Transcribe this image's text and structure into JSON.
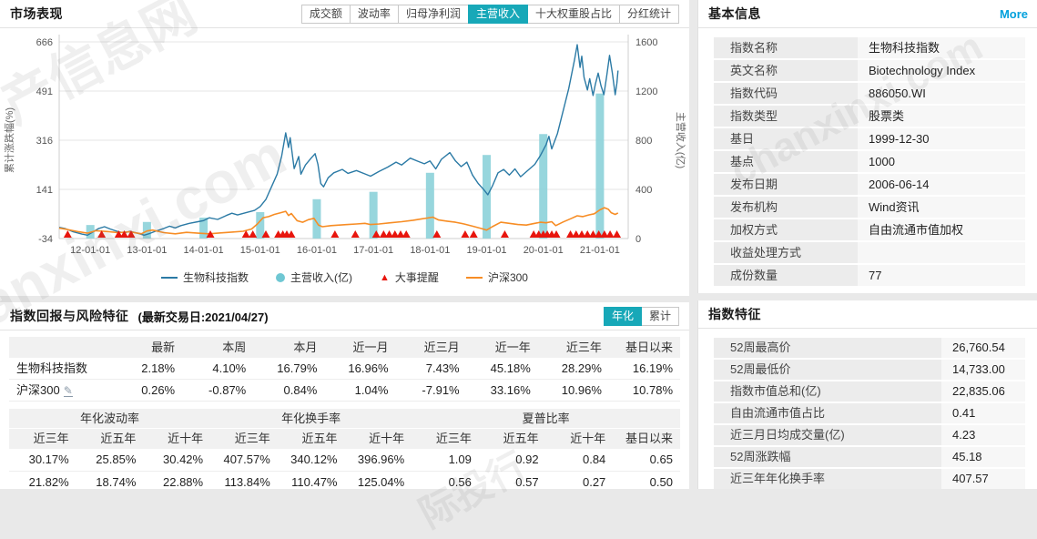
{
  "colors": {
    "accent_teal": "#17a8b8",
    "link_blue": "#00a0dc",
    "line_index": "#2b7aa5",
    "line_benchmark": "#f78d25",
    "bar_revenue": "#8ed2da",
    "event_red": "#e8150d",
    "positive_red": "#e0302e",
    "negative_green": "#0e9648"
  },
  "watermarks": [
    "产信息网",
    "anxinxi.com",
    "chanxinxi.com",
    "际投行"
  ],
  "market_panel": {
    "title": "市场表现",
    "tabs": [
      {
        "label": "成交额",
        "active": false
      },
      {
        "label": "波动率",
        "active": false
      },
      {
        "label": "归母净利润",
        "active": false
      },
      {
        "label": "主营收入",
        "active": true
      },
      {
        "label": "十大权重股占比",
        "active": false
      },
      {
        "label": "分红统计",
        "active": false
      }
    ],
    "legend": [
      {
        "label": "生物科技指数",
        "marker": "line",
        "color": "#2b7aa5"
      },
      {
        "label": "主营收入(亿)",
        "marker": "circle",
        "color": "#6fc7d3"
      },
      {
        "label": "大事提醒",
        "marker": "triangle",
        "color": "#e8150d"
      },
      {
        "label": "沪深300",
        "marker": "line",
        "color": "#f78d25"
      }
    ]
  },
  "chart_data": {
    "type": "line+bar",
    "y_left": {
      "label": "累计涨跌幅(%)",
      "ticks": [
        666,
        491,
        316,
        141,
        -34
      ],
      "min": -34,
      "max": 666
    },
    "y_right": {
      "label": "主营收入(亿)",
      "ticks": [
        1600,
        1200,
        800,
        400,
        0
      ],
      "min": 0,
      "max": 1600
    },
    "x": {
      "ticks": [
        "12-01-01",
        "13-01-01",
        "14-01-01",
        "15-01-01",
        "16-01-01",
        "17-01-01",
        "18-01-01",
        "19-01-01",
        "20-01-01",
        "21-01-01"
      ],
      "tick_years": [
        2012,
        2013,
        2014,
        2015,
        2016,
        2017,
        2018,
        2019,
        2020,
        2021
      ],
      "min": 2011.45,
      "max": 2021.5
    },
    "series": [
      {
        "name": "主营收入(亿)",
        "type": "bar",
        "axis": "right",
        "points": [
          [
            2012,
            110
          ],
          [
            2013,
            135
          ],
          [
            2014,
            170
          ],
          [
            2015,
            215
          ],
          [
            2016,
            320
          ],
          [
            2017,
            380
          ],
          [
            2018,
            535
          ],
          [
            2019,
            680
          ],
          [
            2020,
            850
          ],
          [
            2021,
            1180
          ]
        ]
      },
      {
        "name": "生物科技指数",
        "type": "line",
        "axis": "left",
        "points": [
          [
            2011.45,
            6
          ],
          [
            2011.55,
            2
          ],
          [
            2011.7,
            -10
          ],
          [
            2011.85,
            -18
          ],
          [
            2011.95,
            -22
          ],
          [
            2012.05,
            -10
          ],
          [
            2012.15,
            2
          ],
          [
            2012.25,
            8
          ],
          [
            2012.35,
            0
          ],
          [
            2012.5,
            -10
          ],
          [
            2012.6,
            -14
          ],
          [
            2012.7,
            -8
          ],
          [
            2012.85,
            -16
          ],
          [
            2012.95,
            -22
          ],
          [
            2013.05,
            -16
          ],
          [
            2013.15,
            -8
          ],
          [
            2013.3,
            2
          ],
          [
            2013.4,
            10
          ],
          [
            2013.5,
            4
          ],
          [
            2013.6,
            12
          ],
          [
            2013.75,
            20
          ],
          [
            2013.9,
            26
          ],
          [
            2014,
            30
          ],
          [
            2014.1,
            40
          ],
          [
            2014.25,
            34
          ],
          [
            2014.4,
            48
          ],
          [
            2014.5,
            56
          ],
          [
            2014.6,
            50
          ],
          [
            2014.75,
            58
          ],
          [
            2014.9,
            66
          ],
          [
            2015,
            80
          ],
          [
            2015.1,
            105
          ],
          [
            2015.2,
            150
          ],
          [
            2015.3,
            195
          ],
          [
            2015.38,
            260
          ],
          [
            2015.45,
            342
          ],
          [
            2015.5,
            290
          ],
          [
            2015.53,
            325
          ],
          [
            2015.6,
            215
          ],
          [
            2015.68,
            258
          ],
          [
            2015.72,
            195
          ],
          [
            2015.8,
            228
          ],
          [
            2015.9,
            252
          ],
          [
            2015.97,
            268
          ],
          [
            2016.02,
            230
          ],
          [
            2016.07,
            162
          ],
          [
            2016.12,
            150
          ],
          [
            2016.2,
            182
          ],
          [
            2016.3,
            200
          ],
          [
            2016.45,
            212
          ],
          [
            2016.55,
            198
          ],
          [
            2016.7,
            208
          ],
          [
            2016.85,
            196
          ],
          [
            2016.95,
            188
          ],
          [
            2017.1,
            205
          ],
          [
            2017.25,
            220
          ],
          [
            2017.4,
            238
          ],
          [
            2017.5,
            228
          ],
          [
            2017.65,
            252
          ],
          [
            2017.8,
            240
          ],
          [
            2017.9,
            232
          ],
          [
            2018,
            242
          ],
          [
            2018.1,
            214
          ],
          [
            2018.2,
            248
          ],
          [
            2018.35,
            272
          ],
          [
            2018.45,
            242
          ],
          [
            2018.55,
            222
          ],
          [
            2018.65,
            238
          ],
          [
            2018.75,
            192
          ],
          [
            2018.85,
            162
          ],
          [
            2018.95,
            140
          ],
          [
            2019.02,
            122
          ],
          [
            2019.1,
            152
          ],
          [
            2019.2,
            200
          ],
          [
            2019.3,
            212
          ],
          [
            2019.4,
            192
          ],
          [
            2019.5,
            214
          ],
          [
            2019.6,
            186
          ],
          [
            2019.7,
            204
          ],
          [
            2019.85,
            230
          ],
          [
            2019.95,
            262
          ],
          [
            2020.05,
            300
          ],
          [
            2020.1,
            330
          ],
          [
            2020.15,
            285
          ],
          [
            2020.25,
            340
          ],
          [
            2020.35,
            420
          ],
          [
            2020.45,
            500
          ],
          [
            2020.55,
            600
          ],
          [
            2020.6,
            656
          ],
          [
            2020.65,
            575
          ],
          [
            2020.68,
            615
          ],
          [
            2020.72,
            540
          ],
          [
            2020.78,
            495
          ],
          [
            2020.82,
            535
          ],
          [
            2020.88,
            475
          ],
          [
            2020.92,
            515
          ],
          [
            2020.97,
            555
          ],
          [
            2021.02,
            510
          ],
          [
            2021.07,
            478
          ],
          [
            2021.12,
            545
          ],
          [
            2021.17,
            618
          ],
          [
            2021.22,
            555
          ],
          [
            2021.27,
            478
          ],
          [
            2021.3,
            520
          ],
          [
            2021.32,
            564
          ]
        ]
      },
      {
        "name": "沪深300",
        "type": "line",
        "axis": "left",
        "points": [
          [
            2011.45,
            3
          ],
          [
            2011.6,
            -2
          ],
          [
            2011.8,
            -10
          ],
          [
            2011.95,
            -15
          ],
          [
            2012.1,
            -6
          ],
          [
            2012.3,
            -9
          ],
          [
            2012.5,
            -13
          ],
          [
            2012.7,
            -10
          ],
          [
            2012.9,
            -17
          ],
          [
            2013,
            -7
          ],
          [
            2013.1,
            -4
          ],
          [
            2013.3,
            -13
          ],
          [
            2013.5,
            -17
          ],
          [
            2013.7,
            -12
          ],
          [
            2013.9,
            -15
          ],
          [
            2014.1,
            -17
          ],
          [
            2014.3,
            -14
          ],
          [
            2014.5,
            -11
          ],
          [
            2014.7,
            -8
          ],
          [
            2014.85,
            0
          ],
          [
            2014.95,
            18
          ],
          [
            2015.05,
            40
          ],
          [
            2015.15,
            44
          ],
          [
            2015.25,
            52
          ],
          [
            2015.35,
            57
          ],
          [
            2015.45,
            63
          ],
          [
            2015.5,
            48
          ],
          [
            2015.55,
            55
          ],
          [
            2015.65,
            30
          ],
          [
            2015.75,
            24
          ],
          [
            2015.85,
            33
          ],
          [
            2015.95,
            38
          ],
          [
            2016.03,
            14
          ],
          [
            2016.1,
            8
          ],
          [
            2016.25,
            12
          ],
          [
            2016.4,
            14
          ],
          [
            2016.55,
            16
          ],
          [
            2016.7,
            18
          ],
          [
            2016.85,
            20
          ],
          [
            2016.95,
            16
          ],
          [
            2017.1,
            18
          ],
          [
            2017.3,
            22
          ],
          [
            2017.5,
            26
          ],
          [
            2017.7,
            31
          ],
          [
            2017.85,
            36
          ],
          [
            2017.95,
            39
          ],
          [
            2018.05,
            42
          ],
          [
            2018.15,
            32
          ],
          [
            2018.3,
            28
          ],
          [
            2018.45,
            24
          ],
          [
            2018.6,
            18
          ],
          [
            2018.75,
            10
          ],
          [
            2018.9,
            2
          ],
          [
            2019,
            -4
          ],
          [
            2019.1,
            8
          ],
          [
            2019.25,
            24
          ],
          [
            2019.4,
            20
          ],
          [
            2019.55,
            16
          ],
          [
            2019.7,
            14
          ],
          [
            2019.85,
            20
          ],
          [
            2019.95,
            24
          ],
          [
            2020.05,
            22
          ],
          [
            2020.15,
            26
          ],
          [
            2020.22,
            12
          ],
          [
            2020.35,
            25
          ],
          [
            2020.5,
            38
          ],
          [
            2020.6,
            47
          ],
          [
            2020.7,
            44
          ],
          [
            2020.8,
            50
          ],
          [
            2020.9,
            54
          ],
          [
            2021,
            68
          ],
          [
            2021.08,
            76
          ],
          [
            2021.15,
            70
          ],
          [
            2021.2,
            58
          ],
          [
            2021.27,
            52
          ],
          [
            2021.32,
            57
          ]
        ]
      },
      {
        "name": "大事提醒",
        "type": "event",
        "points": [
          2011.6,
          2012.2,
          2012.5,
          2012.6,
          2012.72,
          2014.12,
          2014.75,
          2014.87,
          2015.1,
          2015.32,
          2015.4,
          2015.47,
          2015.55,
          2016.32,
          2016.68,
          2017.05,
          2017.18,
          2017.28,
          2017.38,
          2017.48,
          2017.58,
          2018.12,
          2018.62,
          2018.77,
          2019.32,
          2019.83,
          2019.92,
          2020.0,
          2020.07,
          2020.15,
          2020.23,
          2020.48,
          2020.58,
          2020.68,
          2020.78,
          2020.88,
          2020.98,
          2021.08,
          2021.18,
          2021.3
        ]
      }
    ]
  },
  "returns_panel": {
    "title": "指数回报与风险特征",
    "subtitle": "(最新交易日:2021/04/27)",
    "toggle": [
      {
        "label": "年化",
        "active": true
      },
      {
        "label": "累计",
        "active": false
      }
    ],
    "returns_table": {
      "headers": [
        "",
        "最新",
        "本周",
        "本月",
        "近一月",
        "近三月",
        "近一年",
        "近三年",
        "基日以来"
      ],
      "rows": [
        {
          "name": "生物科技指数",
          "editable": false,
          "values": [
            {
              "t": "2.18%",
              "c": "r"
            },
            {
              "t": "4.10%",
              "c": "r"
            },
            {
              "t": "16.79%",
              "c": "r"
            },
            {
              "t": "16.96%",
              "c": "r"
            },
            {
              "t": "7.43%",
              "c": "r"
            },
            {
              "t": "45.18%",
              "c": "r"
            },
            {
              "t": "28.29%",
              "c": "r"
            },
            {
              "t": "16.19%",
              "c": "r"
            }
          ]
        },
        {
          "name": "沪深300",
          "editable": true,
          "values": [
            {
              "t": "0.26%",
              "c": "r"
            },
            {
              "t": "-0.87%",
              "c": "g"
            },
            {
              "t": "0.84%",
              "c": "r"
            },
            {
              "t": "1.04%",
              "c": "r"
            },
            {
              "t": "-7.91%",
              "c": "g"
            },
            {
              "t": "33.16%",
              "c": "r"
            },
            {
              "t": "10.96%",
              "c": "r"
            },
            {
              "t": "10.78%",
              "c": "r"
            }
          ]
        }
      ]
    },
    "risk_table": {
      "groups": [
        {
          "label": "年化波动率",
          "span": 3
        },
        {
          "label": "年化换手率",
          "span": 3
        },
        {
          "label": "夏普比率",
          "span": 4
        }
      ],
      "headers": [
        "近三年",
        "近五年",
        "近十年",
        "近三年",
        "近五年",
        "近十年",
        "近三年",
        "近五年",
        "近十年",
        "基日以来"
      ],
      "rows": [
        [
          "30.17%",
          "25.85%",
          "30.42%",
          "407.57%",
          "340.12%",
          "396.96%",
          "1.09",
          "0.92",
          "0.84",
          "0.65"
        ],
        [
          "21.82%",
          "18.74%",
          "22.88%",
          "113.84%",
          "110.47%",
          "125.04%",
          "0.56",
          "0.57",
          "0.27",
          "0.50"
        ]
      ]
    }
  },
  "basic_info": {
    "title": "基本信息",
    "more_label": "More",
    "rows": [
      [
        "指数名称",
        "生物科技指数"
      ],
      [
        "英文名称",
        "Biotechnology Index"
      ],
      [
        "指数代码",
        "886050.WI"
      ],
      [
        "指数类型",
        "股票类"
      ],
      [
        "基日",
        "1999-12-30"
      ],
      [
        "基点",
        "1000"
      ],
      [
        "发布日期",
        "2006-06-14"
      ],
      [
        "发布机构",
        "Wind资讯"
      ],
      [
        "加权方式",
        "自由流通市值加权"
      ],
      [
        "收益处理方式",
        ""
      ],
      [
        "成份数量",
        "77"
      ]
    ]
  },
  "index_features": {
    "title": "指数特征",
    "rows": [
      [
        "52周最高价",
        "26,760.54"
      ],
      [
        "52周最低价",
        "14,733.00"
      ],
      [
        "指数市值总和(亿)",
        "22,835.06"
      ],
      [
        "自由流通市值占比",
        "0.41"
      ],
      [
        "近三月日均成交量(亿)",
        "4.23"
      ],
      [
        "52周涨跌幅",
        "45.18"
      ],
      [
        "近三年年化换手率",
        "407.57"
      ]
    ]
  }
}
